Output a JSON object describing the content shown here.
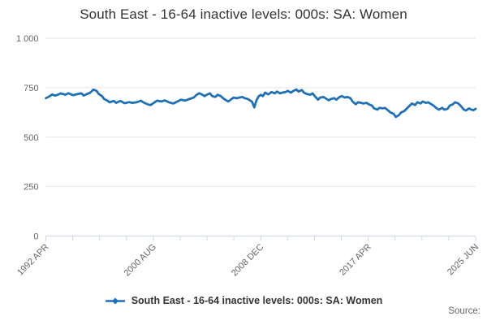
{
  "title": "South East - 16-64 inactive levels: 000s: SA: Women",
  "legend": {
    "label": "South East - 16-64 inactive levels: 000s: SA: Women"
  },
  "source": {
    "label": "Source:"
  },
  "colors": {
    "series": "#1d70b8",
    "grid": "#e6e6e6",
    "axis_line": "#ccd6eb",
    "tick_label": "#666666",
    "title": "#333333",
    "legend_text": "#333333",
    "source_text": "#666666",
    "background": "#ffffff"
  },
  "chart_data": {
    "type": "line",
    "title": "South East - 16-64 inactive levels: 000s: SA: Women",
    "xlabel": "",
    "ylabel": "",
    "legend_position": "bottom-center",
    "grid": "horizontal",
    "y_axis": {
      "min": 0,
      "max": 1000,
      "ticks": [
        {
          "value": 0,
          "label": "0"
        },
        {
          "value": 250,
          "label": "250"
        },
        {
          "value": 500,
          "label": "500"
        },
        {
          "value": 750,
          "label": "750"
        },
        {
          "value": 1000,
          "label": "1 000"
        }
      ]
    },
    "x_axis": {
      "unit": "months since Apr 1992",
      "total_months": 398,
      "tick_count": 17,
      "labeled_ticks": [
        {
          "index": 0,
          "label": "1992 APR"
        },
        {
          "index": 4,
          "label": "2000 AUG"
        },
        {
          "index": 8,
          "label": "2008 DEC"
        },
        {
          "index": 12,
          "label": "2017 APR"
        },
        {
          "index": 16,
          "label": "2025 JUN"
        }
      ]
    },
    "series": [
      {
        "name": "South East - 16-64 inactive levels: 000s: SA: Women",
        "color": "#1d70b8",
        "points": [
          [
            0,
            697
          ],
          [
            3,
            705
          ],
          [
            6,
            716
          ],
          [
            8,
            710
          ],
          [
            10,
            712
          ],
          [
            14,
            721
          ],
          [
            18,
            714
          ],
          [
            21,
            722
          ],
          [
            25,
            712
          ],
          [
            29,
            717
          ],
          [
            33,
            721
          ],
          [
            35,
            710
          ],
          [
            38,
            718
          ],
          [
            41,
            724
          ],
          [
            44,
            740
          ],
          [
            47,
            734
          ],
          [
            49,
            718
          ],
          [
            52,
            707
          ],
          [
            54,
            693
          ],
          [
            57,
            684
          ],
          [
            59,
            676
          ],
          [
            63,
            683
          ],
          [
            65,
            673
          ],
          [
            69,
            683
          ],
          [
            73,
            671
          ],
          [
            77,
            677
          ],
          [
            80,
            673
          ],
          [
            84,
            676
          ],
          [
            88,
            684
          ],
          [
            90,
            677
          ],
          [
            94,
            666
          ],
          [
            97,
            662
          ],
          [
            100,
            673
          ],
          [
            103,
            684
          ],
          [
            107,
            680
          ],
          [
            110,
            686
          ],
          [
            114,
            676
          ],
          [
            118,
            670
          ],
          [
            122,
            680
          ],
          [
            125,
            689
          ],
          [
            129,
            684
          ],
          [
            133,
            693
          ],
          [
            137,
            700
          ],
          [
            139,
            711
          ],
          [
            142,
            722
          ],
          [
            144,
            717
          ],
          [
            147,
            707
          ],
          [
            149,
            714
          ],
          [
            152,
            721
          ],
          [
            154,
            707
          ],
          [
            157,
            703
          ],
          [
            159,
            714
          ],
          [
            162,
            707
          ],
          [
            164,
            697
          ],
          [
            167,
            686
          ],
          [
            169,
            680
          ],
          [
            172,
            693
          ],
          [
            174,
            700
          ],
          [
            177,
            696
          ],
          [
            179,
            700
          ],
          [
            182,
            703
          ],
          [
            184,
            697
          ],
          [
            187,
            693
          ],
          [
            189,
            686
          ],
          [
            191,
            678
          ],
          [
            193,
            650
          ],
          [
            195,
            685
          ],
          [
            197,
            706
          ],
          [
            199,
            714
          ],
          [
            201,
            707
          ],
          [
            203,
            725
          ],
          [
            206,
            716
          ],
          [
            209,
            728
          ],
          [
            212,
            721
          ],
          [
            214,
            730
          ],
          [
            217,
            721
          ],
          [
            219,
            725
          ],
          [
            222,
            728
          ],
          [
            224,
            734
          ],
          [
            227,
            725
          ],
          [
            229,
            733
          ],
          [
            232,
            741
          ],
          [
            234,
            730
          ],
          [
            237,
            738
          ],
          [
            239,
            725
          ],
          [
            242,
            717
          ],
          [
            245,
            714
          ],
          [
            247,
            721
          ],
          [
            249,
            707
          ],
          [
            252,
            689
          ],
          [
            254,
            700
          ],
          [
            257,
            703
          ],
          [
            259,
            696
          ],
          [
            262,
            686
          ],
          [
            264,
            693
          ],
          [
            267,
            697
          ],
          [
            269,
            689
          ],
          [
            272,
            703
          ],
          [
            274,
            707
          ],
          [
            277,
            700
          ],
          [
            279,
            703
          ],
          [
            282,
            697
          ],
          [
            284,
            680
          ],
          [
            287,
            666
          ],
          [
            289,
            676
          ],
          [
            292,
            673
          ],
          [
            294,
            670
          ],
          [
            297,
            673
          ],
          [
            299,
            666
          ],
          [
            302,
            659
          ],
          [
            304,
            645
          ],
          [
            307,
            639
          ],
          [
            309,
            648
          ],
          [
            312,
            645
          ],
          [
            314,
            648
          ],
          [
            317,
            635
          ],
          [
            319,
            625
          ],
          [
            322,
            618
          ],
          [
            324,
            602
          ],
          [
            327,
            611
          ],
          [
            329,
            625
          ],
          [
            332,
            632
          ],
          [
            334,
            643
          ],
          [
            337,
            659
          ],
          [
            339,
            670
          ],
          [
            342,
            662
          ],
          [
            344,
            676
          ],
          [
            347,
            670
          ],
          [
            349,
            680
          ],
          [
            352,
            673
          ],
          [
            354,
            676
          ],
          [
            357,
            666
          ],
          [
            359,
            659
          ],
          [
            362,
            645
          ],
          [
            364,
            639
          ],
          [
            367,
            648
          ],
          [
            369,
            639
          ],
          [
            372,
            643
          ],
          [
            374,
            659
          ],
          [
            377,
            666
          ],
          [
            379,
            676
          ],
          [
            382,
            670
          ],
          [
            384,
            659
          ],
          [
            387,
            639
          ],
          [
            389,
            635
          ],
          [
            392,
            645
          ],
          [
            394,
            639
          ],
          [
            396,
            636
          ],
          [
            398,
            643
          ]
        ]
      }
    ]
  }
}
